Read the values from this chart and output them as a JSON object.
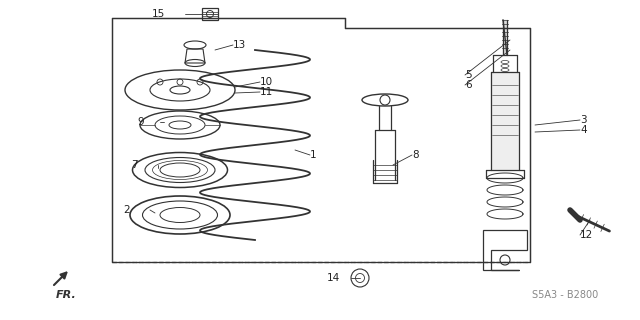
{
  "bg_color": "#ffffff",
  "line_color": "#333333",
  "label_color": "#222222",
  "diagram_code": "S5A3 - B2800",
  "fig_w": 6.4,
  "fig_h": 3.2,
  "dpi": 100
}
